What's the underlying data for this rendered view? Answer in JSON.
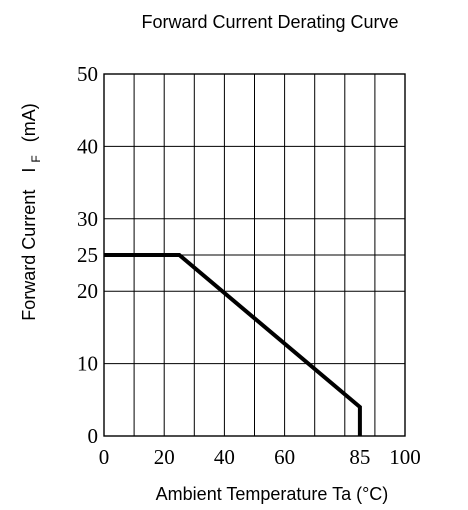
{
  "chart_data": {
    "type": "line",
    "title": "Forward Current Derating Curve",
    "xlabel": "Ambient Temperature Ta (°C)",
    "ylabel": {
      "main": "Forward Current",
      "symbol": "I",
      "subscript": "F",
      "unit": "(mA)"
    },
    "xlim": [
      0,
      100
    ],
    "ylim": [
      0,
      50
    ],
    "x_ticks": [
      0,
      20,
      40,
      60,
      85,
      100
    ],
    "y_ticks": [
      0,
      10,
      20,
      25,
      30,
      40,
      50
    ],
    "x_grid": [
      10,
      20,
      30,
      40,
      50,
      60,
      70,
      80,
      90
    ],
    "y_grid": [
      10,
      20,
      25,
      30,
      40
    ],
    "grid": true,
    "series": [
      {
        "x": [
          0,
          25,
          85,
          85
        ],
        "y": [
          25,
          25,
          4,
          0
        ]
      }
    ]
  }
}
